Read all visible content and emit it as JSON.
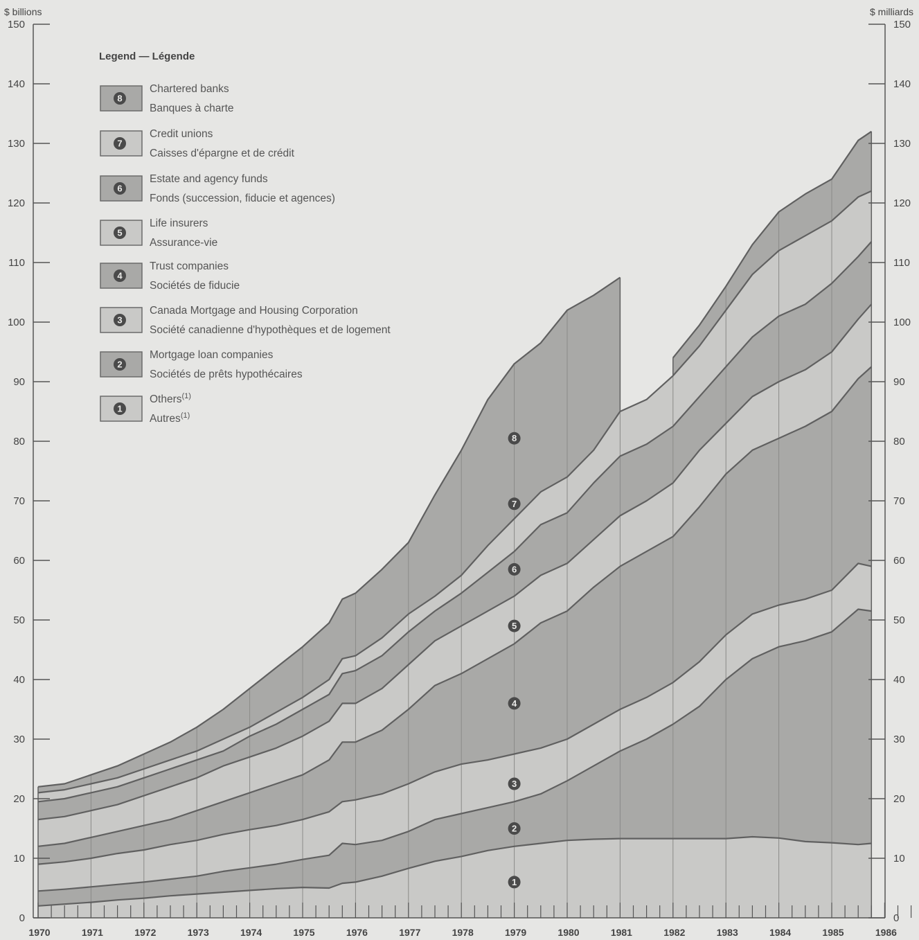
{
  "chart_data": {
    "type": "area",
    "stacked": true,
    "y_unit_left": "$ billions",
    "y_unit_right": "$ milliards",
    "ylim": [
      0,
      150
    ],
    "yticks": [
      0,
      10,
      20,
      30,
      40,
      50,
      60,
      70,
      80,
      90,
      100,
      110,
      120,
      130,
      140,
      150
    ],
    "xlim": [
      1970,
      1986.75
    ],
    "year_labels": [
      "1970",
      "1971",
      "1972",
      "1973",
      "1974",
      "1975",
      "1976",
      "1977",
      "1978",
      "1979",
      "1980",
      "1981",
      "1982",
      "1983",
      "1984",
      "1985",
      "1986"
    ],
    "x": [
      1970.0,
      1970.5,
      1971.0,
      1971.5,
      1972.0,
      1972.5,
      1973.0,
      1973.5,
      1974.0,
      1974.5,
      1975.0,
      1975.5,
      1975.75,
      1976.0,
      1976.5,
      1977.0,
      1977.5,
      1978.0,
      1978.5,
      1979.0,
      1979.5,
      1980.0,
      1980.5,
      1981.0,
      1981.5,
      1982.0,
      1982.5,
      1983.0,
      1983.5,
      1984.0,
      1984.5,
      1985.0,
      1985.5,
      1985.75
    ],
    "cumulative_top": [
      {
        "id": 1,
        "values": [
          2.0,
          2.3,
          2.6,
          3.0,
          3.3,
          3.7,
          4.0,
          4.3,
          4.6,
          4.9,
          5.1,
          5.0,
          5.8,
          6.0,
          7.0,
          8.3,
          9.5,
          10.3,
          11.3,
          12.0,
          12.5,
          13.0,
          13.2,
          13.3,
          13.3,
          13.3,
          13.3,
          13.3,
          13.6,
          13.4,
          12.8,
          12.6,
          12.3,
          12.5
        ]
      },
      {
        "id": 2,
        "values": [
          4.5,
          4.8,
          5.2,
          5.6,
          6.0,
          6.5,
          7.0,
          7.8,
          8.4,
          9.0,
          9.8,
          10.5,
          12.5,
          12.3,
          13.0,
          14.5,
          16.5,
          17.5,
          18.5,
          19.5,
          20.8,
          23.0,
          25.5,
          28.0,
          30.0,
          32.5,
          35.5,
          40.0,
          43.5,
          45.5,
          46.5,
          48.0,
          51.8,
          51.5
        ]
      },
      {
        "id": 3,
        "values": [
          9.0,
          9.4,
          10.0,
          10.8,
          11.4,
          12.3,
          13.0,
          14.0,
          14.8,
          15.5,
          16.5,
          17.8,
          19.5,
          19.8,
          20.8,
          22.5,
          24.5,
          25.8,
          26.5,
          27.5,
          28.5,
          30.0,
          32.5,
          35.0,
          37.0,
          39.5,
          43.0,
          47.5,
          51.0,
          52.5,
          53.5,
          55.0,
          59.5,
          59.0
        ]
      },
      {
        "id": 4,
        "values": [
          12.0,
          12.5,
          13.5,
          14.5,
          15.5,
          16.5,
          18.0,
          19.5,
          21.0,
          22.5,
          24.0,
          26.5,
          29.5,
          29.5,
          31.5,
          35.0,
          39.0,
          41.0,
          43.5,
          46.0,
          49.5,
          51.5,
          55.5,
          59.0,
          61.5,
          64.0,
          69.0,
          74.5,
          78.5,
          80.5,
          82.5,
          85.0,
          90.5,
          92.5
        ]
      },
      {
        "id": 5,
        "values": [
          16.5,
          17.0,
          18.0,
          19.0,
          20.5,
          22.0,
          23.5,
          25.5,
          27.0,
          28.5,
          30.5,
          33.0,
          36.0,
          36.0,
          38.5,
          42.5,
          46.5,
          49.0,
          51.5,
          54.0,
          57.5,
          59.5,
          63.5,
          67.5,
          70.0,
          73.0,
          78.5,
          83.0,
          87.5,
          90.0,
          92.0,
          95.0,
          100.5,
          103.0
        ]
      },
      {
        "id": 6,
        "values": [
          19.5,
          20.0,
          21.0,
          22.0,
          23.5,
          25.0,
          26.5,
          28.0,
          30.5,
          32.5,
          35.0,
          37.5,
          41.0,
          41.5,
          44.0,
          48.0,
          51.5,
          54.5,
          58.0,
          61.5,
          66.0,
          68.0,
          73.0,
          77.5,
          79.5,
          82.5,
          87.5,
          92.5,
          97.5,
          101.0,
          103.0,
          106.5,
          111.0,
          113.5
        ]
      },
      {
        "id": 7,
        "values": [
          21.0,
          21.5,
          22.5,
          23.5,
          25.0,
          26.5,
          28.0,
          30.0,
          32.0,
          34.5,
          37.0,
          40.0,
          43.5,
          44.0,
          47.0,
          51.0,
          54.0,
          57.5,
          62.5,
          67.0,
          71.5,
          74.0,
          78.5,
          85.0,
          87.0,
          91.0,
          96.0,
          102.0,
          108.0,
          112.0,
          114.5,
          117.0,
          121.0,
          122.0
        ]
      },
      {
        "id": 8,
        "values": [
          22.0,
          22.5,
          24.0,
          25.5,
          27.5,
          29.5,
          32.0,
          35.0,
          38.5,
          42.0,
          45.5,
          49.5,
          53.5,
          54.5,
          58.5,
          63.0,
          71.0,
          78.5,
          87.0,
          93.0,
          96.5,
          102.0,
          104.5,
          107.5,
          null,
          94.0,
          99.5,
          106.0,
          113.0,
          118.5,
          121.5,
          124.0,
          130.5,
          132.0
        ]
      }
    ],
    "legend_title": "Legend — Légende",
    "legend": [
      {
        "id": 8,
        "glyph": "8",
        "en": "Chartered banks",
        "fr": "Banques à charte"
      },
      {
        "id": 7,
        "glyph": "7",
        "en": "Credit unions",
        "fr": "Caisses d'épargne et de crédit"
      },
      {
        "id": 6,
        "glyph": "6",
        "en": "Estate and agency funds",
        "fr": "Fonds (succession, fiducie et agences)"
      },
      {
        "id": 5,
        "glyph": "5",
        "en": "Life insurers",
        "fr": "Assurance-vie"
      },
      {
        "id": 4,
        "glyph": "4",
        "en": "Trust companies",
        "fr": "Sociétés de fiducie"
      },
      {
        "id": 3,
        "glyph": "3",
        "en": "Canada Mortgage and Housing Corporation",
        "fr": "Société canadienne d'hypothèques et de logement"
      },
      {
        "id": 2,
        "glyph": "2",
        "en": "Mortgage loan companies",
        "fr": "Sociétés de prêts hypothécaires"
      },
      {
        "id": 1,
        "glyph": "1",
        "en": "Others",
        "fr": "Autres",
        "superscript": "(1)"
      }
    ],
    "band_markers": [
      {
        "id": 8,
        "x": 1979.0,
        "y": 80.5
      },
      {
        "id": 7,
        "x": 1979.0,
        "y": 69.5
      },
      {
        "id": 6,
        "x": 1979.0,
        "y": 58.5
      },
      {
        "id": 5,
        "x": 1979.0,
        "y": 49.0
      },
      {
        "id": 4,
        "x": 1979.0,
        "y": 36.0
      },
      {
        "id": 3,
        "x": 1979.0,
        "y": 22.5
      },
      {
        "id": 2,
        "x": 1979.0,
        "y": 15.0
      },
      {
        "id": 1,
        "x": 1979.0,
        "y": 6.0
      }
    ]
  },
  "colors": {
    "background": "#e6e6e4",
    "band_dark": "#a9a9a7",
    "band_light": "#c9c9c7",
    "line": "#606060",
    "axis": "#555555"
  }
}
